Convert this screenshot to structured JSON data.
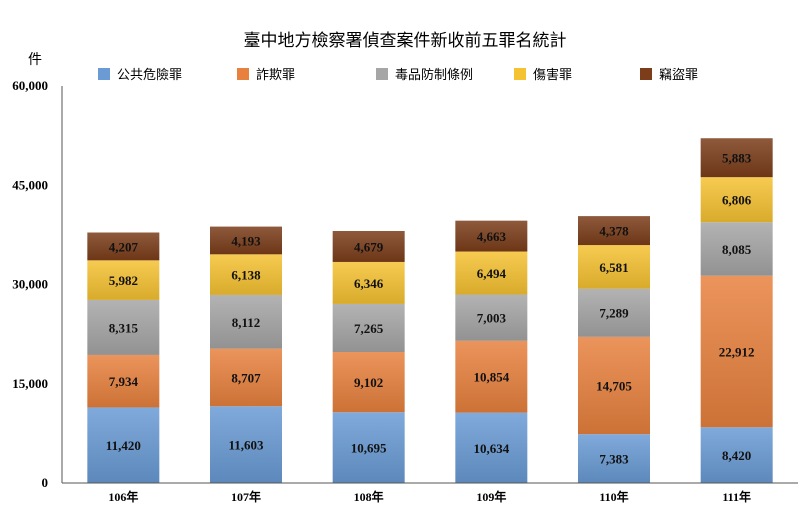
{
  "chart_data": {
    "type": "bar",
    "stacked": true,
    "title": "臺中地方檢察署偵查案件新收前五罪名統計",
    "ylabel": "件",
    "xlabel": "",
    "ylim": [
      0,
      60000
    ],
    "yticks": [
      0,
      15000,
      30000,
      45000,
      60000
    ],
    "ytick_labels": [
      "0",
      "15,000",
      "30,000",
      "45,000",
      "60,000"
    ],
    "grid": false,
    "legend_position": "top",
    "categories": [
      "106年",
      "107年",
      "108年",
      "109年",
      "110年",
      "111年"
    ],
    "series": [
      {
        "name": "公共危險罪",
        "color": "#6a9bd5",
        "values": [
          11420,
          11603,
          10695,
          10634,
          7383,
          8420
        ],
        "labels": [
          "11,420",
          "11,603",
          "10,695",
          "10,634",
          "7,383",
          "8,420"
        ]
      },
      {
        "name": "詐欺罪",
        "color": "#e8813e",
        "values": [
          7934,
          8707,
          9102,
          10854,
          14705,
          22912
        ],
        "labels": [
          "7,934",
          "8,707",
          "9,102",
          "10,854",
          "14,705",
          "22,912"
        ]
      },
      {
        "name": "毒品防制條例",
        "color": "#a6a6a6",
        "values": [
          8315,
          8112,
          7265,
          7003,
          7289,
          8085
        ],
        "labels": [
          "8,315",
          "8,112",
          "7,265",
          "7,003",
          "7,289",
          "8,085"
        ]
      },
      {
        "name": "傷害罪",
        "color": "#f5c232",
        "values": [
          5982,
          6138,
          6346,
          6494,
          6581,
          6806
        ],
        "labels": [
          "5,982",
          "6,138",
          "6,346",
          "6,494",
          "6,581",
          "6,806"
        ]
      },
      {
        "name": "竊盜罪",
        "color": "#7b3d1a",
        "values": [
          4207,
          4193,
          4679,
          4663,
          4378,
          5883
        ],
        "labels": [
          "4,207",
          "4,193",
          "4,679",
          "4,663",
          "4,378",
          "5,883"
        ]
      }
    ]
  }
}
